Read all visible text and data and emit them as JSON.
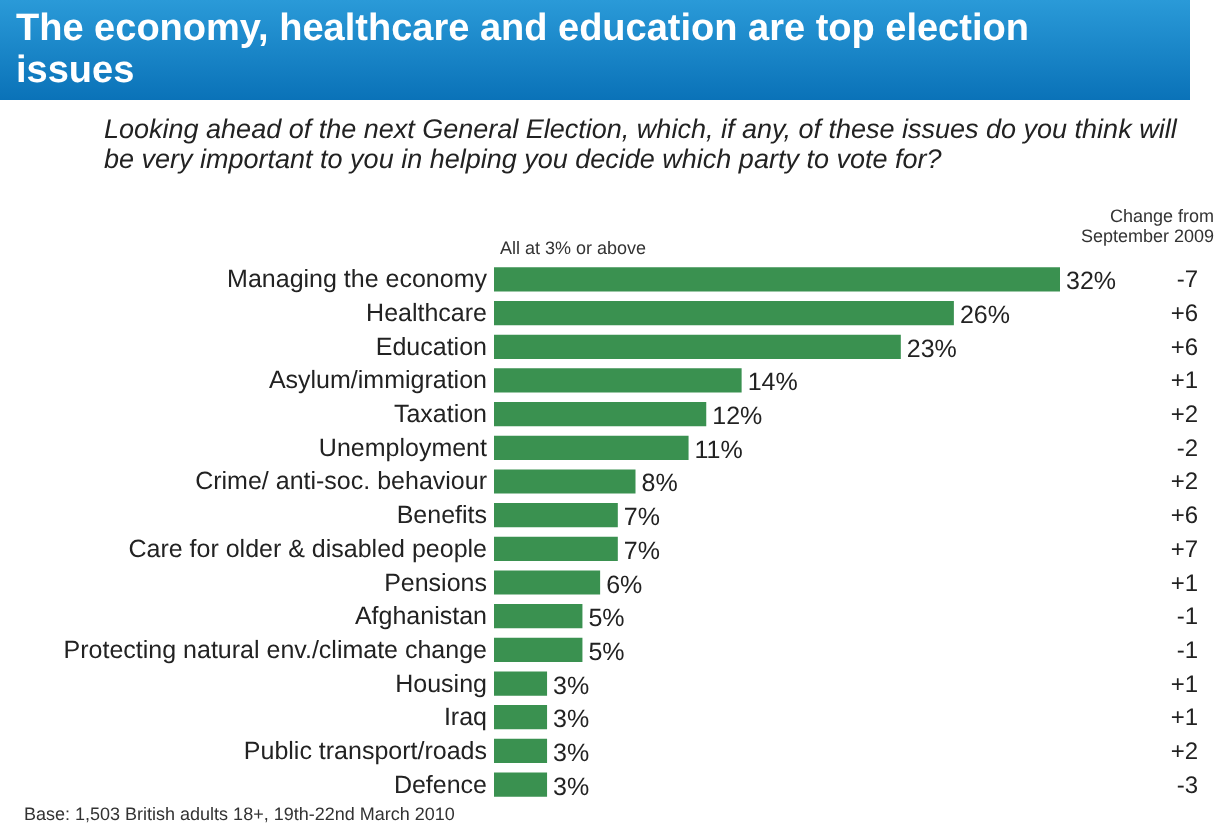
{
  "chart_data": {
    "type": "bar",
    "orientation": "horizontal",
    "title": "The economy, healthcare and education are top election issues",
    "subtitle": "Looking ahead of the next General Election, which, if any, of these issues do you think will be very important to you in helping you decide which party to vote for?",
    "categories": [
      "Managing the economy",
      "Healthcare",
      "Education",
      "Asylum/immigration",
      "Taxation",
      "Unemployment",
      "Crime/ anti-soc. behaviour",
      "Benefits",
      "Care for older & disabled people",
      "Pensions",
      "Afghanistan",
      "Protecting natural env./climate change",
      "Housing",
      "Iraq",
      "Public transport/roads",
      "Defence"
    ],
    "values": [
      32,
      26,
      23,
      14,
      12,
      11,
      8,
      7,
      7,
      6,
      5,
      5,
      3,
      3,
      3,
      3
    ],
    "value_labels": [
      "32%",
      "26%",
      "23%",
      "14%",
      "12%",
      "11%",
      "8%",
      "7%",
      "7%",
      "6%",
      "5%",
      "5%",
      "3%",
      "3%",
      "3%",
      "3%"
    ],
    "color": "#3a9150",
    "annotations": [
      "All at 3% or above",
      "Change from September 2009",
      "Base: 1,503 British adults 18+, 19th-22nd March 2010",
      "-7",
      "+6",
      "+6",
      "+1",
      "+2",
      "-2",
      "+2",
      "+6",
      "+7",
      "+1",
      "-1",
      "-1",
      "+1",
      "+1",
      "+2",
      "-3"
    ],
    "tick_labels": "y"
  }
}
